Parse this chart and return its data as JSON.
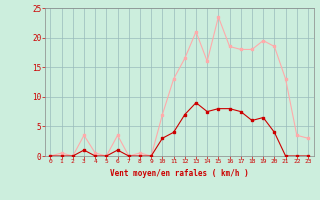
{
  "x": [
    0,
    1,
    2,
    3,
    4,
    5,
    6,
    7,
    8,
    9,
    10,
    11,
    12,
    13,
    14,
    15,
    16,
    17,
    18,
    19,
    20,
    21,
    22,
    23
  ],
  "y_mean": [
    0,
    0,
    0,
    1,
    0,
    0,
    1,
    0,
    0,
    0,
    3,
    4,
    7,
    9,
    7.5,
    8,
    8,
    7.5,
    6,
    6.5,
    4,
    0,
    0,
    0
  ],
  "y_gust": [
    0,
    0.5,
    0,
    3.5,
    0.5,
    0,
    3.5,
    0,
    0.5,
    0,
    7,
    13,
    16.5,
    21,
    16,
    23.5,
    18.5,
    18,
    18,
    19.5,
    18.5,
    13,
    3.5,
    3
  ],
  "line_mean_color": "#cc0000",
  "line_gust_color": "#ffaaaa",
  "marker_mean_color": "#cc0000",
  "marker_gust_color": "#ffaaaa",
  "bg_color": "#cceedd",
  "grid_color": "#99bbbb",
  "xlabel": "Vent moyen/en rafales ( km/h )",
  "xlabel_color": "#cc0000",
  "tick_color": "#cc0000",
  "ylim": [
    0,
    25
  ],
  "yticks": [
    0,
    5,
    10,
    15,
    20,
    25
  ],
  "ytick_labels": [
    "0",
    "5",
    "10",
    "15",
    "20",
    "25"
  ]
}
